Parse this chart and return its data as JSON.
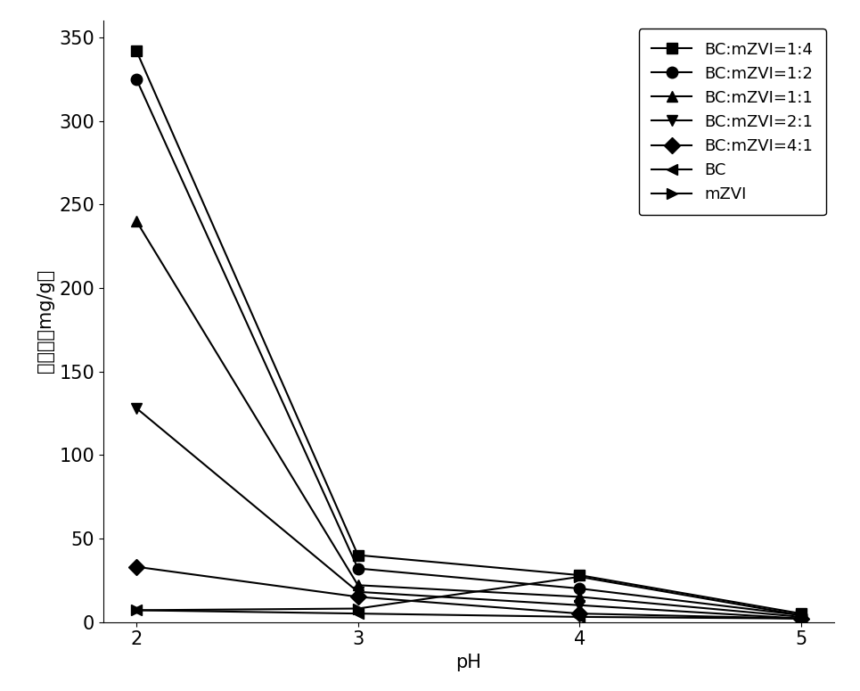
{
  "ph": [
    2,
    3,
    4,
    5
  ],
  "series": [
    {
      "label": "BC:mZVI=1:4",
      "values": [
        342,
        40,
        28,
        5
      ],
      "marker": "s",
      "color": "black"
    },
    {
      "label": "BC:mZVI=1:2",
      "values": [
        325,
        32,
        20,
        4
      ],
      "marker": "o",
      "color": "black"
    },
    {
      "label": "BC:mZVI=1:1",
      "values": [
        240,
        22,
        15,
        3
      ],
      "marker": "^",
      "color": "black"
    },
    {
      "label": "BC:mZVI=2:1",
      "values": [
        128,
        18,
        10,
        2
      ],
      "marker": "v",
      "color": "black"
    },
    {
      "label": "BC:mZVI=4:1",
      "values": [
        33,
        15,
        5,
        2
      ],
      "marker": "D",
      "color": "black"
    },
    {
      "label": "BC",
      "values": [
        7,
        5,
        3,
        2
      ],
      "marker": "<",
      "color": "black"
    },
    {
      "label": "mZVI",
      "values": [
        7,
        8,
        27,
        4
      ],
      "marker": ">",
      "color": "black"
    }
  ],
  "xlabel": "pH",
  "ylabel": "去除量（mg/g）",
  "ylim": [
    0,
    360
  ],
  "yticks": [
    0,
    50,
    100,
    150,
    200,
    250,
    300,
    350
  ],
  "xticks": [
    2,
    3,
    4,
    5
  ],
  "legend_loc": "upper right",
  "background_color": "#ffffff",
  "linewidth": 1.5,
  "markersize": 9,
  "axis_fontsize": 15,
  "legend_fontsize": 13
}
